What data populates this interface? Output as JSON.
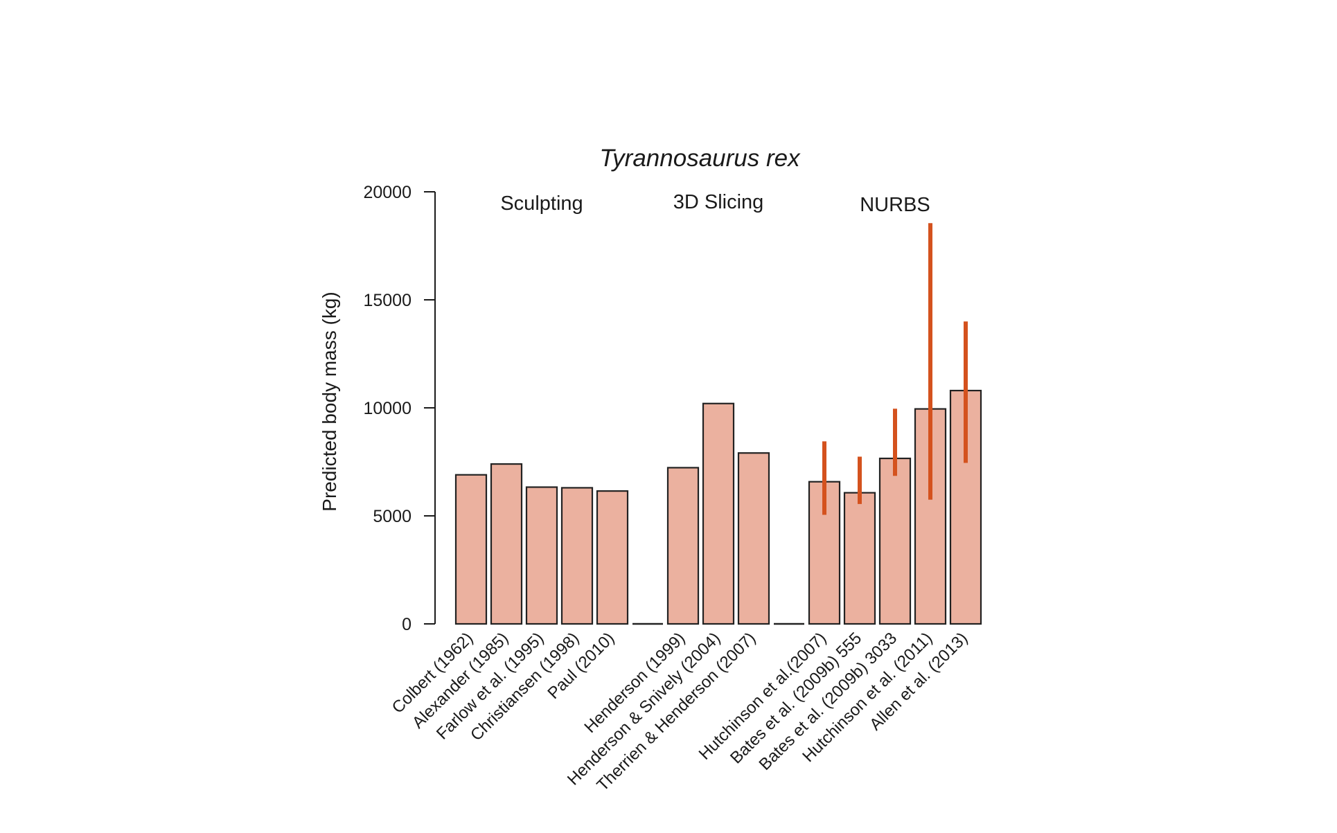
{
  "chart_data": {
    "type": "bar",
    "title": "Tyrannosaurus rex",
    "xlabel": "",
    "ylabel": "Predicted body mass (kg)",
    "ylim": [
      0,
      20000
    ],
    "yticks": [
      0,
      5000,
      10000,
      15000,
      20000
    ],
    "groups": [
      "Sculpting",
      "3D Slicing",
      "NURBS"
    ],
    "bars": [
      {
        "label": "Colbert (1962)",
        "group": "Sculpting",
        "value": 6900
      },
      {
        "label": "Alexander (1985)",
        "group": "Sculpting",
        "value": 7400
      },
      {
        "label": "Farlow et al. (1995)",
        "group": "Sculpting",
        "value": 6330
      },
      {
        "label": "Christiansen (1998)",
        "group": "Sculpting",
        "value": 6300
      },
      {
        "label": "Paul (2010)",
        "group": "Sculpting",
        "value": 6150
      },
      {
        "label": "",
        "group": "gap",
        "value": 0
      },
      {
        "label": "Henderson (1999)",
        "group": "3D Slicing",
        "value": 7230
      },
      {
        "label": "Henderson & Snively (2004)",
        "group": "3D Slicing",
        "value": 10200
      },
      {
        "label": "Therrien & Henderson (2007)",
        "group": "3D Slicing",
        "value": 7910
      },
      {
        "label": "",
        "group": "gap",
        "value": 0
      },
      {
        "label": "Hutchinson et al.(2007)",
        "group": "NURBS",
        "value": 6580,
        "range": [
          5050,
          8450
        ]
      },
      {
        "label": "Bates et al. (2009b) 555",
        "group": "NURBS",
        "value": 6070,
        "range": [
          5550,
          7740
        ]
      },
      {
        "label": "Bates et al. (2009b) 3033",
        "group": "NURBS",
        "value": 7660,
        "range": [
          6850,
          9960
        ]
      },
      {
        "label": "Hutchinson et al. (2011)",
        "group": "NURBS",
        "value": 9950,
        "range": [
          5750,
          18550
        ]
      },
      {
        "label": "Allen et al. (2013)",
        "group": "NURBS",
        "value": 10800,
        "range": [
          7450,
          14000
        ]
      }
    ],
    "colors": {
      "bar_fill": "#ebb19f",
      "bar_stroke": "#222222",
      "error_bar": "#d4521e"
    }
  }
}
